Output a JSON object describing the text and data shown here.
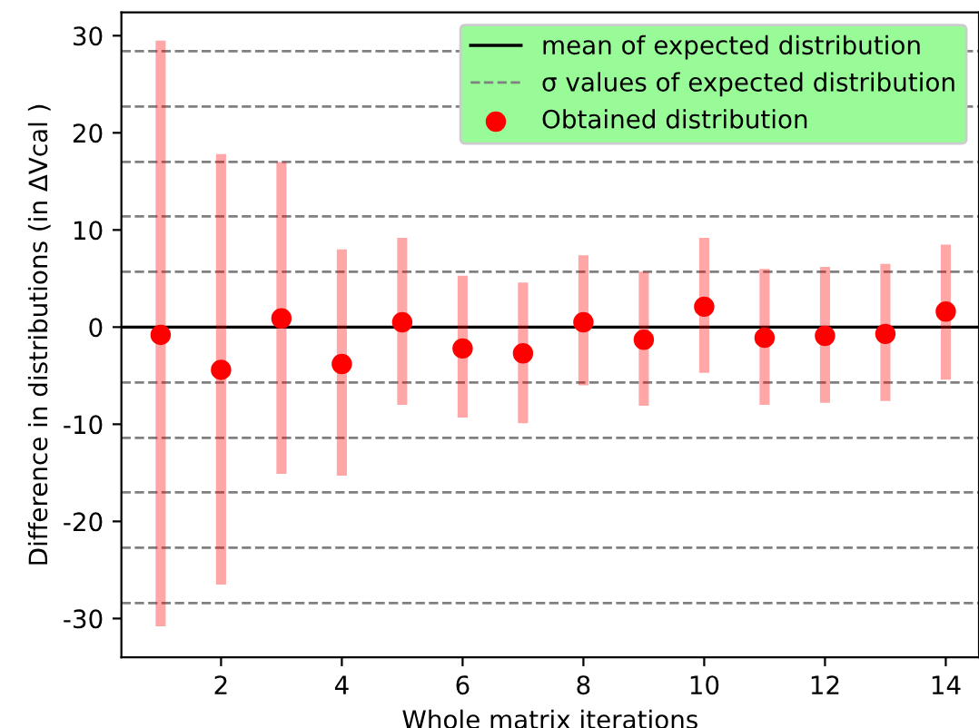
{
  "chart_data": {
    "type": "scatter",
    "xlabel": "Whole matrix iterations",
    "ylabel": "Difference in distributions (in ΔVcal )",
    "x": [
      1,
      2,
      3,
      4,
      5,
      6,
      7,
      8,
      9,
      10,
      11,
      12,
      13,
      14
    ],
    "series": [
      {
        "name": "Obtained distribution",
        "color": "#ff0000",
        "values": [
          -0.8,
          -4.4,
          0.9,
          -3.8,
          0.5,
          -2.2,
          -2.7,
          0.5,
          -1.3,
          2.1,
          -1.1,
          -0.9,
          -0.7,
          1.6
        ],
        "errors": [
          [
            -30.8,
            29.5
          ],
          [
            -26.5,
            17.8
          ],
          [
            -15.1,
            17.0
          ],
          [
            -15.3,
            8.0
          ],
          [
            -8.0,
            9.2
          ],
          [
            -9.3,
            5.3
          ],
          [
            -9.9,
            4.6
          ],
          [
            -6.0,
            7.4
          ],
          [
            -8.1,
            5.7
          ],
          [
            -4.7,
            9.2
          ],
          [
            -8.0,
            6.0
          ],
          [
            -7.8,
            6.2
          ],
          [
            -7.6,
            6.5
          ],
          [
            -5.4,
            8.5
          ]
        ]
      }
    ],
    "ref_lines": [
      {
        "axis": "y",
        "value": 0,
        "label": "mean of expected distribution",
        "color": "#000000",
        "line_style": "solid"
      },
      {
        "axis": "y",
        "value": 5.7,
        "label": "σ values of expected distribution",
        "color": "#808080",
        "line_style": "dashed"
      },
      {
        "axis": "y",
        "value": -5.7,
        "color": "#808080",
        "line_style": "dashed"
      },
      {
        "axis": "y",
        "value": 11.4,
        "color": "#808080",
        "line_style": "dashed"
      },
      {
        "axis": "y",
        "value": -11.4,
        "color": "#808080",
        "line_style": "dashed"
      },
      {
        "axis": "y",
        "value": 17.0,
        "color": "#808080",
        "line_style": "dashed"
      },
      {
        "axis": "y",
        "value": -17.0,
        "color": "#808080",
        "line_style": "dashed"
      },
      {
        "axis": "y",
        "value": 22.7,
        "color": "#808080",
        "line_style": "dashed"
      },
      {
        "axis": "y",
        "value": -22.7,
        "color": "#808080",
        "line_style": "dashed"
      },
      {
        "axis": "y",
        "value": 28.4,
        "color": "#808080",
        "line_style": "dashed"
      },
      {
        "axis": "y",
        "value": -28.4,
        "color": "#808080",
        "line_style": "dashed"
      }
    ],
    "xlim": [
      0.35,
      14.55
    ],
    "ylim": [
      -34,
      32.4
    ],
    "xticks": [
      2,
      4,
      6,
      8,
      10,
      12,
      14
    ],
    "yticks": [
      -30,
      -20,
      -10,
      0,
      10,
      20,
      30
    ],
    "marker": "circle",
    "grid": false,
    "legend": "top right"
  }
}
